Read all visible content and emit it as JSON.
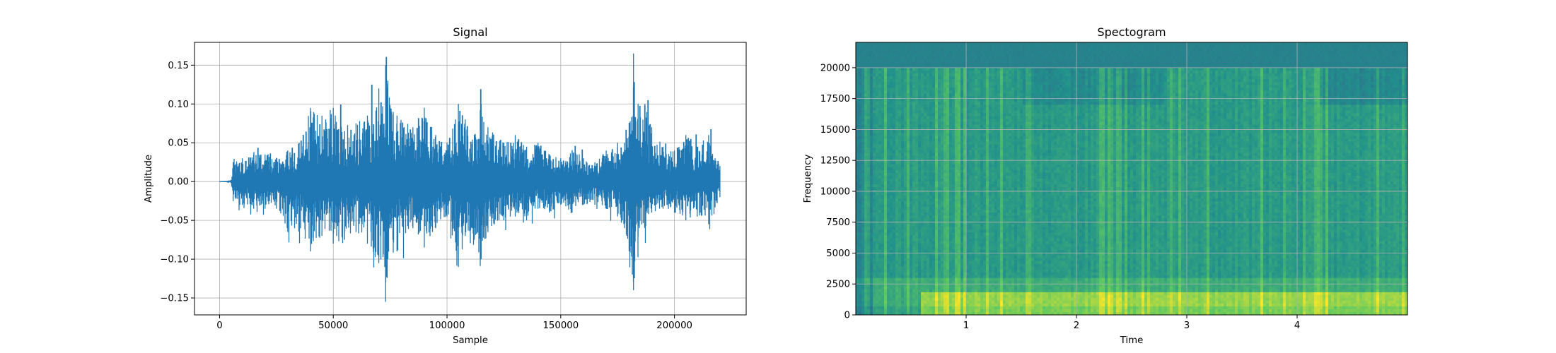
{
  "chart_data": [
    {
      "type": "line",
      "title": "Signal",
      "xlabel": "Sample",
      "ylabel": "Amplitude",
      "xlim": [
        -11025,
        231525
      ],
      "ylim": [
        -0.1718,
        0.1794
      ],
      "xticks": [
        0,
        50000,
        100000,
        150000,
        200000
      ],
      "xtick_labels": [
        "0",
        "50000",
        "100000",
        "150000",
        "200000"
      ],
      "yticks": [
        -0.15,
        -0.1,
        -0.05,
        0.0,
        0.05,
        0.1,
        0.15
      ],
      "ytick_labels": [
        "−0.15",
        "−0.10",
        "−0.05",
        "0.00",
        "0.05",
        "0.10",
        "0.15"
      ],
      "grid": true,
      "color": "#1f77b4",
      "n_samples": 220500,
      "series": [
        {
          "x": [
            0,
            5000,
            6000,
            10000,
            15000,
            20000,
            25000,
            30000,
            35000,
            40000,
            45000,
            50000,
            55000,
            60000,
            65000,
            70000,
            73000,
            74000,
            78000,
            85000,
            90000,
            95000,
            100000,
            105000,
            108000,
            112000,
            115000,
            118000,
            125000,
            130000,
            135000,
            140000,
            145000,
            150000,
            155000,
            160000,
            165000,
            170000,
            175000,
            178000,
            182000,
            184000,
            187000,
            190000,
            195000,
            200000,
            205000,
            210000,
            215000,
            220000
          ],
          "y_max": [
            0.0,
            0.002,
            0.025,
            0.03,
            0.035,
            0.035,
            0.03,
            0.04,
            0.05,
            0.095,
            0.085,
            0.095,
            0.065,
            0.075,
            0.085,
            0.12,
            0.15,
            0.13,
            0.085,
            0.07,
            0.095,
            0.06,
            0.05,
            0.1,
            0.08,
            0.06,
            0.1,
            0.07,
            0.05,
            0.06,
            0.045,
            0.05,
            0.035,
            0.03,
            0.04,
            0.03,
            0.025,
            0.04,
            0.05,
            0.05,
            0.165,
            0.1,
            0.1,
            0.07,
            0.045,
            0.04,
            0.06,
            0.045,
            0.06,
            0.02
          ],
          "y_min": [
            0.0,
            -0.002,
            -0.025,
            -0.03,
            -0.035,
            -0.035,
            -0.035,
            -0.065,
            -0.06,
            -0.09,
            -0.07,
            -0.08,
            -0.075,
            -0.065,
            -0.08,
            -0.105,
            -0.155,
            -0.1,
            -0.09,
            -0.06,
            -0.085,
            -0.06,
            -0.045,
            -0.11,
            -0.07,
            -0.075,
            -0.1,
            -0.065,
            -0.05,
            -0.045,
            -0.05,
            -0.035,
            -0.04,
            -0.03,
            -0.04,
            -0.03,
            -0.03,
            -0.035,
            -0.045,
            -0.06,
            -0.14,
            -0.07,
            -0.06,
            -0.04,
            -0.035,
            -0.04,
            -0.05,
            -0.045,
            -0.055,
            -0.02
          ]
        }
      ]
    },
    {
      "type": "heatmap",
      "title": "Spectogram",
      "xlabel": "Time",
      "ylabel": "Frequency",
      "xlim": [
        0,
        5.0
      ],
      "ylim": [
        0,
        22050
      ],
      "xticks": [
        1,
        2,
        3,
        4
      ],
      "xtick_labels": [
        "1",
        "2",
        "3",
        "4"
      ],
      "yticks": [
        0,
        2500,
        5000,
        7500,
        10000,
        12500,
        15000,
        17500,
        20000
      ],
      "ytick_labels": [
        "0",
        "2500",
        "5000",
        "7500",
        "10000",
        "12500",
        "15000",
        "17500",
        "20000"
      ],
      "grid": true,
      "colormap": "viridis",
      "colors": [
        "#440154",
        "#3b528b",
        "#21918c",
        "#5ec962",
        "#fde725"
      ]
    }
  ]
}
